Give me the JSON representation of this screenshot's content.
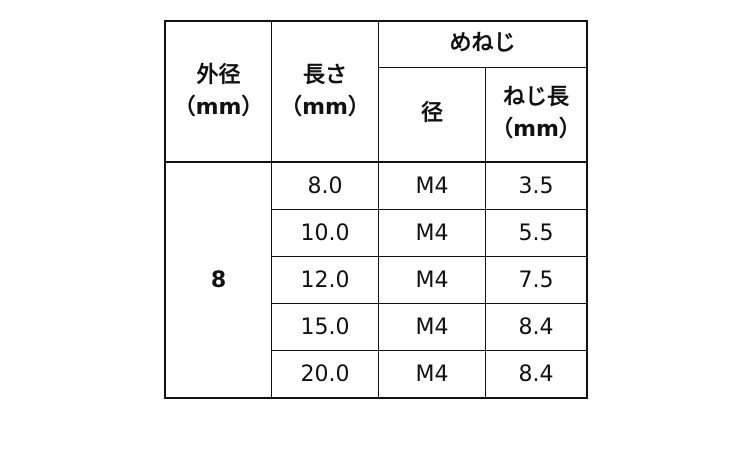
{
  "headers": {
    "outer_diameter": "外径",
    "outer_unit": "（mm）",
    "length": "長さ",
    "length_unit": "（mm）",
    "female_thread": "めねじ",
    "diameter": "径",
    "thread_length": "ねじ長",
    "thread_unit": "（mm）"
  },
  "outer_value": "8",
  "rows": [
    {
      "length": "8.0",
      "diameter": "M4",
      "thread_length": "3.5"
    },
    {
      "length": "10.0",
      "diameter": "M4",
      "thread_length": "5.5"
    },
    {
      "length": "12.0",
      "diameter": "M4",
      "thread_length": "7.5"
    },
    {
      "length": "15.0",
      "diameter": "M4",
      "thread_length": "8.4"
    },
    {
      "length": "20.0",
      "diameter": "M4",
      "thread_length": "8.4"
    }
  ]
}
